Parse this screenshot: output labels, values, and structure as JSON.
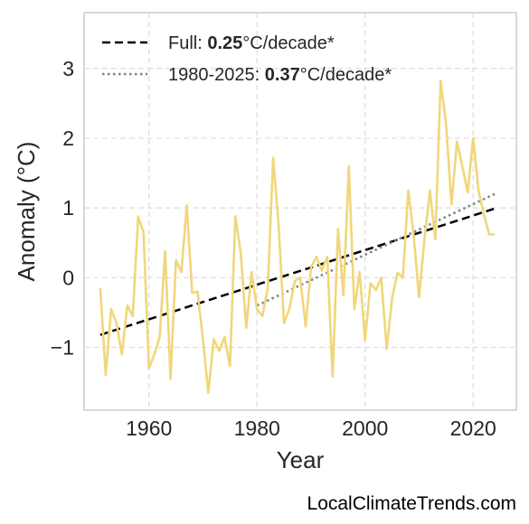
{
  "chart_data": {
    "type": "line",
    "xlabel": "Year",
    "ylabel": "Anomaly (°C)",
    "xlim": [
      1948,
      2028
    ],
    "ylim": [
      -1.9,
      3.8
    ],
    "xticks": [
      1960,
      1980,
      2000,
      2020
    ],
    "xtick_labels": [
      "1960",
      "1980",
      "2000",
      "2020"
    ],
    "yticks": [
      -1,
      0,
      1,
      2,
      3
    ],
    "ytick_labels": [
      "−1",
      "0",
      "1",
      "2",
      "3"
    ],
    "grid": true,
    "legend_position": "top-left",
    "legend": [
      {
        "prefix": "Full: ",
        "value": "0.25",
        "suffix": "°C/decade*",
        "style": "dashed",
        "color": "#000000"
      },
      {
        "prefix": "1980-2025: ",
        "value": "0.37",
        "suffix": "°C/decade*",
        "style": "dotted",
        "color": "#808080"
      }
    ],
    "series": [
      {
        "color": "#f0d77a",
        "x": [
          1951,
          1952,
          1953,
          1954,
          1955,
          1956,
          1957,
          1958,
          1959,
          1960,
          1961,
          1962,
          1963,
          1964,
          1965,
          1966,
          1967,
          1968,
          1969,
          1970,
          1971,
          1972,
          1973,
          1974,
          1975,
          1976,
          1977,
          1978,
          1979,
          1980,
          1981,
          1982,
          1983,
          1984,
          1985,
          1986,
          1987,
          1988,
          1989,
          1990,
          1991,
          1992,
          1993,
          1994,
          1995,
          1996,
          1997,
          1998,
          1999,
          2000,
          2001,
          2002,
          2003,
          2004,
          2005,
          2006,
          2007,
          2008,
          2009,
          2010,
          2011,
          2012,
          2013,
          2014,
          2015,
          2016,
          2017,
          2018,
          2019,
          2020,
          2021,
          2022,
          2023,
          2024
        ],
        "y": [
          -0.15,
          -1.4,
          -0.45,
          -0.65,
          -1.1,
          -0.4,
          -0.55,
          0.88,
          0.65,
          -1.3,
          -1.1,
          -0.85,
          0.38,
          -1.45,
          0.25,
          0.08,
          1.04,
          -0.22,
          -0.2,
          -0.9,
          -1.65,
          -0.88,
          -1.05,
          -0.85,
          -1.27,
          0.88,
          0.35,
          -0.72,
          0.08,
          -0.45,
          -0.55,
          -0.15,
          1.72,
          0.75,
          -0.65,
          -0.45,
          -0.05,
          0.0,
          -0.7,
          0.15,
          0.3,
          0.1,
          0.3,
          -1.42,
          0.7,
          -0.25,
          1.6,
          -0.45,
          0.08,
          -0.9,
          -0.08,
          -0.18,
          0.0,
          -1.02,
          -0.3,
          0.07,
          0.0,
          1.25,
          0.6,
          -0.28,
          0.55,
          1.25,
          0.55,
          2.82,
          2.2,
          1.05,
          1.95,
          1.6,
          1.22,
          2.0,
          1.25,
          0.9,
          0.62,
          0.62
        ]
      }
    ],
    "trend_lines": [
      {
        "name": "Full",
        "x": [
          1951,
          2024
        ],
        "y": [
          -0.82,
          0.99
        ],
        "style": "dashed",
        "color": "#000000"
      },
      {
        "name": "1980-2025",
        "x": [
          1980,
          2024
        ],
        "y": [
          -0.4,
          1.2
        ],
        "style": "dotted",
        "color": "#808080"
      }
    ]
  },
  "credit": "LocalClimateTrends.com"
}
